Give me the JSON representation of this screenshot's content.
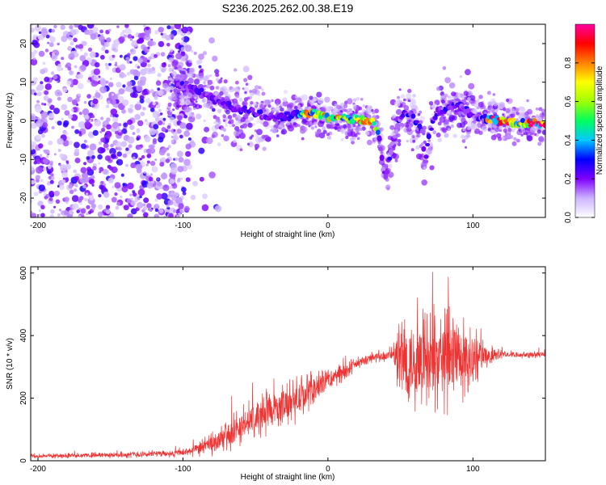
{
  "figure_title": "S236.2025.262.00.38.E19",
  "chart_data": [
    {
      "type": "heatmap",
      "id": "spectrogram",
      "xlabel": "Height of straight line (km)",
      "ylabel": "Frequency (Hz)",
      "xlim": [
        -205,
        150
      ],
      "ylim": [
        -25,
        25
      ],
      "xticks": [
        -200,
        -100,
        0,
        100
      ],
      "yticks": [
        -20,
        -10,
        0,
        10,
        20
      ],
      "xtick_labels": [
        "-200",
        "-100",
        "0",
        "100"
      ],
      "ytick_labels": [
        "-20",
        "-10",
        "0",
        "10",
        "20"
      ],
      "ridge": {
        "x": [
          -205,
          -100,
          -90,
          -80,
          -70,
          -60,
          -50,
          -40,
          -30,
          -20,
          -10,
          0,
          10,
          20,
          30,
          35,
          38,
          40,
          45,
          50,
          55,
          60,
          65,
          67,
          70,
          75,
          80,
          85,
          90,
          95,
          100,
          110,
          120,
          130,
          150
        ],
        "y": [
          0,
          9,
          8,
          6,
          4,
          3,
          2,
          1,
          1,
          2,
          2,
          1,
          0.5,
          0.3,
          0,
          -3,
          -12,
          -14,
          -5,
          1,
          2,
          0,
          -3,
          -11,
          -3,
          2,
          3,
          4,
          4,
          3,
          1,
          0.5,
          0,
          -0.5,
          -0.5
        ]
      },
      "colorbar": {
        "label": "Normalized spectral amplitude",
        "range": [
          0,
          1
        ],
        "ticks": [
          0.0,
          0.2,
          0.4,
          0.6,
          0.8
        ],
        "tick_labels": [
          "0.0",
          "0.2",
          "0.4",
          "0.6",
          "0.8"
        ],
        "colors": [
          "#ffffff",
          "#cdb4ff",
          "#8000ff",
          "#0000ff",
          "#00c8ff",
          "#00ff60",
          "#a0ff00",
          "#ffff00",
          "#ff8000",
          "#ff0000",
          "#ff00a0"
        ]
      }
    },
    {
      "type": "line",
      "id": "snr",
      "xlabel": "Height of straight line (km)",
      "ylabel": "SNR (10 * v/v)",
      "xlim": [
        -205,
        150
      ],
      "ylim": [
        0,
        620
      ],
      "xticks": [
        -200,
        -100,
        0,
        100
      ],
      "yticks": [
        0,
        200,
        400,
        600
      ],
      "xtick_labels": [
        "-200",
        "-100",
        "0",
        "100"
      ],
      "ytick_labels": [
        "0",
        "200",
        "400",
        "600"
      ],
      "color": "#ee3333",
      "envelope": {
        "x": [
          -205,
          -150,
          -100,
          -80,
          -60,
          -40,
          -20,
          -10,
          0,
          20,
          30,
          40,
          45,
          50,
          55,
          60,
          70,
          80,
          90,
          100,
          110,
          120,
          150
        ],
        "base": [
          15,
          18,
          25,
          50,
          110,
          160,
          200,
          220,
          255,
          310,
          330,
          335,
          340,
          320,
          320,
          320,
          320,
          320,
          320,
          330,
          330,
          340,
          340
        ],
        "spread": [
          8,
          10,
          15,
          40,
          70,
          80,
          80,
          70,
          40,
          25,
          20,
          20,
          30,
          160,
          200,
          180,
          160,
          180,
          180,
          100,
          40,
          15,
          12
        ]
      }
    }
  ]
}
